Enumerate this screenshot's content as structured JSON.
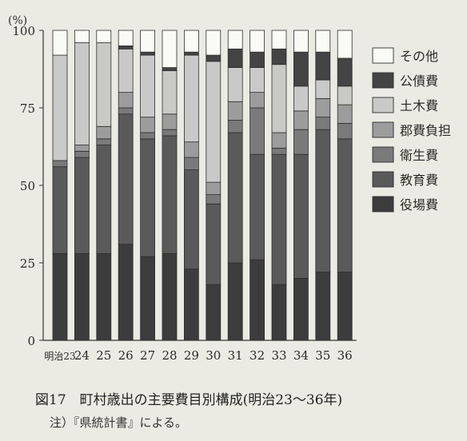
{
  "figure": {
    "caption": "図17　町村歳出の主要費目別構成(明治23～36年)",
    "note": "注）『県統計書』による。"
  },
  "chart_data": {
    "type": "bar",
    "stacked": true,
    "title": "",
    "xlabel": "",
    "ylabel": "(%)",
    "ylim": [
      0,
      100
    ],
    "yticks": [
      0,
      25,
      50,
      75,
      100
    ],
    "grid": false,
    "legend_position": "right",
    "categories": [
      "明治23",
      "24",
      "25",
      "26",
      "27",
      "28",
      "29",
      "30",
      "31",
      "32",
      "33",
      "34",
      "35",
      "36"
    ],
    "series": [
      {
        "name": "役場費",
        "color": "#3c3c3c",
        "values": [
          28,
          28,
          28,
          31,
          27,
          28,
          23,
          18,
          25,
          26,
          18,
          20,
          22,
          22
        ]
      },
      {
        "name": "教育費",
        "color": "#5a5a5a",
        "values": [
          28,
          31,
          35,
          42,
          38,
          38,
          32,
          26,
          42,
          34,
          42,
          40,
          46,
          43
        ]
      },
      {
        "name": "衛生費",
        "color": "#7a7a7a",
        "values": [
          2,
          2,
          2,
          2,
          2,
          2,
          4,
          3,
          4,
          15,
          2,
          8,
          4,
          5
        ]
      },
      {
        "name": "郡費負担",
        "color": "#9c9c9c",
        "values": [
          0,
          2,
          4,
          5,
          5,
          5,
          5,
          4,
          6,
          5,
          5,
          6,
          6,
          6
        ]
      },
      {
        "name": "土木費",
        "color": "#c9c9c7",
        "values": [
          34,
          33,
          27,
          14,
          20,
          14,
          28,
          39,
          11,
          8,
          22,
          8,
          6,
          6
        ]
      },
      {
        "name": "公債費",
        "color": "#444444",
        "values": [
          0,
          0,
          0,
          1,
          1,
          1,
          1,
          2,
          6,
          5,
          5,
          11,
          9,
          9
        ]
      },
      {
        "name": "その他",
        "color": "#fbfbf6",
        "values": [
          8,
          4,
          4,
          5,
          7,
          12,
          7,
          8,
          6,
          7,
          6,
          7,
          7,
          9
        ]
      }
    ]
  }
}
